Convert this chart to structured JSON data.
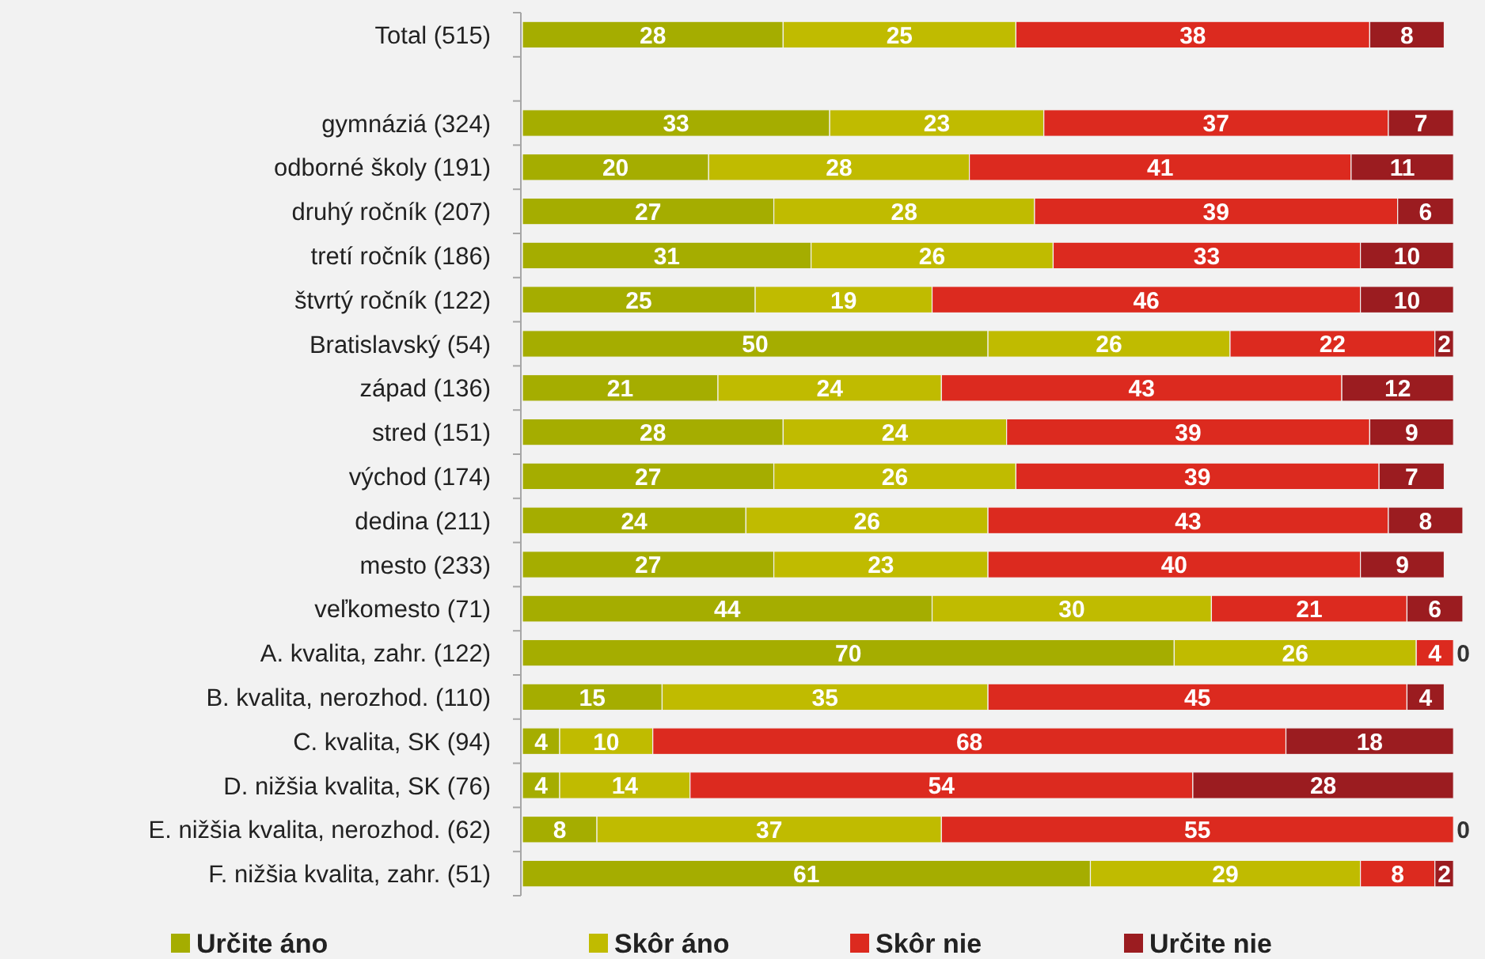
{
  "chart_data": {
    "type": "bar",
    "orientation": "horizontal",
    "stacked": true,
    "data_labels": true,
    "legend": "bottom",
    "categories": [
      "Total (515)",
      null,
      "gymnáziá (324)",
      "odborné školy (191)",
      "druhý ročník (207)",
      "tretí ročník (186)",
      "štvrtý ročník (122)",
      "Bratislavský (54)",
      "západ (136)",
      "stred (151)",
      "východ (174)",
      "dedina (211)",
      "mesto (233)",
      "veľkomesto (71)",
      "A. kvalita, zahr. (122)",
      "B. kvalita, nerozhod. (110)",
      "C. kvalita, SK (94)",
      "D. nižšia kvalita, SK (76)",
      "E. nižšia kvalita, nerozhod. (62)",
      "F. nižšia kvalita, zahr. (51)"
    ],
    "series": [
      {
        "name": "Určite áno",
        "color": "#a5ad00",
        "values": [
          28,
          null,
          33,
          20,
          27,
          31,
          25,
          50,
          21,
          28,
          27,
          24,
          27,
          44,
          70,
          15,
          4,
          4,
          8,
          61
        ]
      },
      {
        "name": "Skôr áno",
        "color": "#c0bb00",
        "values": [
          25,
          null,
          23,
          28,
          28,
          26,
          19,
          26,
          24,
          24,
          26,
          26,
          23,
          30,
          26,
          35,
          10,
          14,
          37,
          29
        ]
      },
      {
        "name": "Skôr nie",
        "color": "#dc2a1f",
        "values": [
          38,
          null,
          37,
          41,
          39,
          33,
          46,
          22,
          43,
          39,
          39,
          43,
          40,
          21,
          4,
          45,
          68,
          54,
          55,
          8
        ]
      },
      {
        "name": "Určite nie",
        "color": "#9b1c20",
        "values": [
          8,
          null,
          7,
          11,
          6,
          10,
          10,
          2,
          12,
          9,
          7,
          8,
          9,
          6,
          0,
          4,
          18,
          28,
          0,
          2
        ]
      }
    ]
  }
}
